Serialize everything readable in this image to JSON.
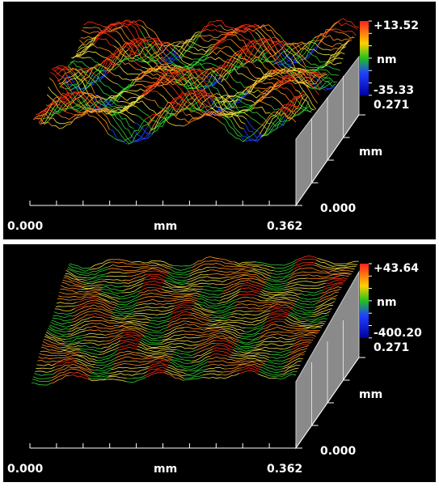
{
  "panels": [
    {
      "scale_max": "+13.52",
      "scale_unit": "nm",
      "scale_min": "-35.33",
      "y_axis_max": "0.271",
      "y_axis_unit": "mm",
      "y_axis_min": "0.000",
      "x_axis_min": "0.000",
      "x_axis_unit": "mm",
      "x_axis_max": "0.362"
    },
    {
      "scale_max": "+43.64",
      "scale_unit": "nm",
      "scale_min": "-400.20",
      "y_axis_max": "0.271",
      "y_axis_unit": "mm",
      "y_axis_min": "0.000",
      "x_axis_min": "0.000",
      "x_axis_unit": "mm",
      "x_axis_max": "0.362"
    }
  ]
}
